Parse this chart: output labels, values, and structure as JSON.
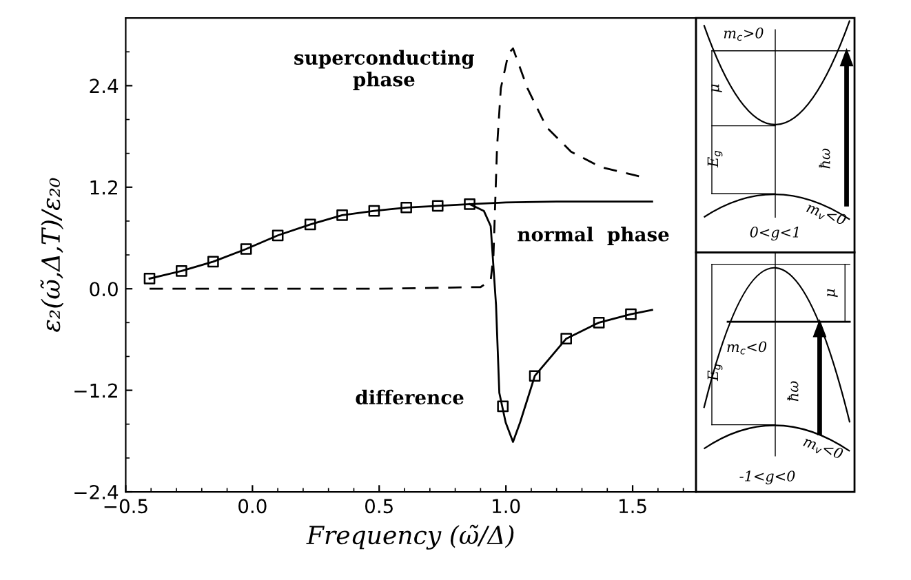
{
  "chart_data": {
    "type": "line",
    "xlabel": "Frequency (ω̃/Δ)",
    "ylabel": "ε₂(ω̃,Δ,T)/ε₂₀",
    "xlim": [
      -0.5,
      1.75
    ],
    "ylim": [
      -2.4,
      3.2
    ],
    "xticks": [
      {
        "value": -0.5,
        "label": "−0.5"
      },
      {
        "value": 0,
        "label": "0.0"
      },
      0.5,
      {
        "value": 1,
        "label": "1.0"
      },
      1.5
    ],
    "yticks": [
      {
        "value": -2.4,
        "label": "−2.4"
      },
      {
        "value": -1.2,
        "label": "−1.2"
      },
      {
        "value": 0,
        "label": "0.0"
      },
      1.2,
      2.4
    ],
    "grid": false,
    "legend": false,
    "series": [
      {
        "color": "#000000",
        "line_style": "solid",
        "marker": "none",
        "x": [
          -0.406,
          -0.28,
          -0.155,
          -0.025,
          0.1,
          0.228,
          0.354,
          0.48,
          0.607,
          0.731,
          0.857,
          1.0,
          1.2,
          1.4,
          1.577
        ],
        "values": [
          0.12,
          0.21,
          0.32,
          0.47,
          0.63,
          0.76,
          0.87,
          0.92,
          0.96,
          0.98,
          1.0,
          1.02,
          1.03,
          1.03,
          1.03
        ]
      },
      {
        "color": "#000000",
        "line_style": "dashed",
        "marker": "none",
        "x": [
          -0.406,
          0.0,
          0.5,
          0.9,
          0.94,
          0.951,
          0.965,
          0.98,
          1.01,
          1.028,
          1.085,
          1.16,
          1.257,
          1.372,
          1.525
        ],
        "values": [
          0.0,
          0.0,
          0.0,
          0.02,
          0.1,
          0.4,
          1.67,
          2.37,
          2.78,
          2.84,
          2.37,
          1.91,
          1.62,
          1.44,
          1.33
        ]
      },
      {
        "color": "#000000",
        "line_style": "solid",
        "marker": "none",
        "x": [
          0.857,
          0.913,
          0.94,
          0.961,
          0.974,
          0.999,
          1.028,
          1.056,
          1.114,
          1.238,
          1.367,
          1.493,
          1.577
        ],
        "values": [
          1.0,
          0.92,
          0.74,
          -0.19,
          -1.23,
          -1.58,
          -1.81,
          -1.58,
          -1.03,
          -0.59,
          -0.4,
          -0.3,
          -0.25
        ]
      },
      {
        "type": "scatter",
        "color": "#000000",
        "marker": "square",
        "x": [
          -0.406,
          -0.28,
          -0.155,
          -0.025,
          0.1,
          0.228,
          0.354,
          0.48,
          0.607,
          0.731,
          0.857,
          0.988,
          1.114,
          1.238,
          1.367,
          1.493
        ],
        "values": [
          0.12,
          0.21,
          0.32,
          0.47,
          0.63,
          0.76,
          0.87,
          0.92,
          0.96,
          0.98,
          1.0,
          -1.39,
          -1.03,
          -0.59,
          -0.4,
          -0.3
        ]
      }
    ],
    "annotations": [
      "superconducting\nphase",
      "normal  phase",
      "difference",
      "m$_{c}$>0",
      "μ",
      "E$_{g}$",
      "ħω",
      "m$_{v}$<0",
      "0<g<1",
      "m$_{c}$<0",
      "μ",
      "E$_{g}$",
      "ħω",
      "m$_{v}$<0",
      "-1<g<0"
    ]
  }
}
